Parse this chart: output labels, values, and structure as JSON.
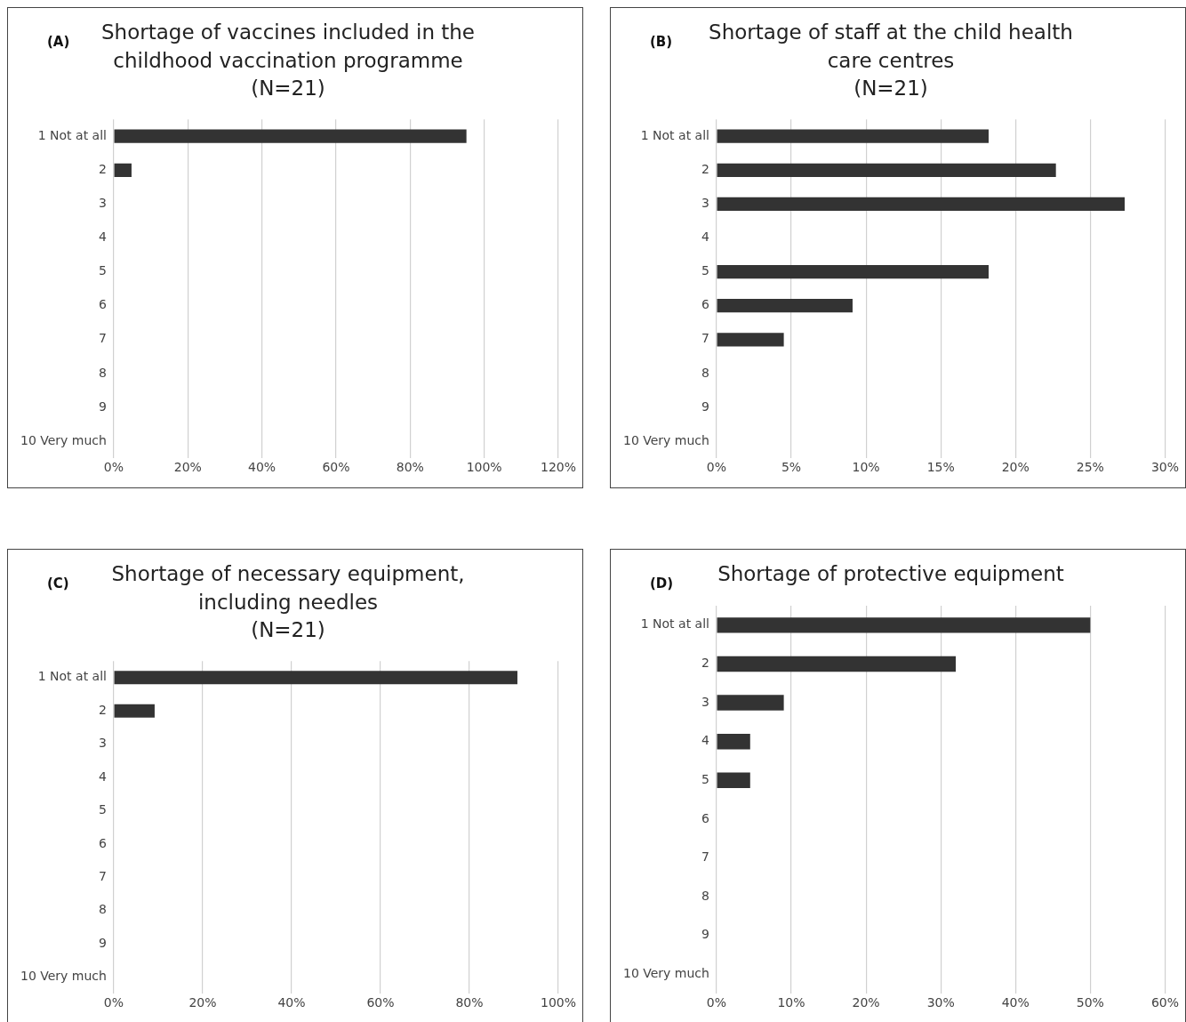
{
  "chart_data": [
    {
      "type": "bar",
      "orientation": "horizontal",
      "title": "Shortage of vaccines included in the\nchildhood vaccination programme\n(N=21)",
      "annotations": [
        "(A)"
      ],
      "categories": [
        "1 Not at all",
        "2",
        "3",
        "4",
        "5",
        "6",
        "7",
        "8",
        "9",
        "10 Very much"
      ],
      "values": [
        95.2,
        4.8,
        0,
        0,
        0,
        0,
        0,
        0,
        0,
        0
      ],
      "color": "#333333",
      "xlim": [
        0,
        120
      ],
      "xticks": [
        {
          "value": 0,
          "label": "0%"
        },
        {
          "value": 20,
          "label": "20%"
        },
        {
          "value": 40,
          "label": "40%"
        },
        {
          "value": 60,
          "label": "60%"
        },
        {
          "value": 80,
          "label": "80%"
        },
        {
          "value": 100,
          "label": "100%"
        },
        {
          "value": 120,
          "label": "120%"
        }
      ],
      "grid": "x",
      "legend": false
    },
    {
      "type": "bar",
      "orientation": "horizontal",
      "title": "Shortage of staff at the child health\ncare centres\n(N=21)",
      "annotations": [
        "(B)"
      ],
      "categories": [
        "1 Not at all",
        "2",
        "3",
        "4",
        "5",
        "6",
        "7",
        "8",
        "9",
        "10 Very much"
      ],
      "values": [
        18.2,
        22.7,
        27.3,
        0,
        18.2,
        9.1,
        4.5,
        0,
        0,
        0
      ],
      "color": "#333333",
      "xlim": [
        0,
        30
      ],
      "xticks": [
        {
          "value": 0,
          "label": "0%"
        },
        {
          "value": 5,
          "label": "5%"
        },
        {
          "value": 10,
          "label": "10%"
        },
        {
          "value": 15,
          "label": "15%"
        },
        {
          "value": 20,
          "label": "20%"
        },
        {
          "value": 25,
          "label": "25%"
        },
        {
          "value": 30,
          "label": "30%"
        }
      ],
      "grid": "x",
      "legend": false
    },
    {
      "type": "bar",
      "orientation": "horizontal",
      "title": "Shortage of necessary equipment,\nincluding needles\n(N=21)",
      "annotations": [
        "(C)"
      ],
      "categories": [
        "1 Not at all",
        "2",
        "3",
        "4",
        "5",
        "6",
        "7",
        "8",
        "9",
        "10 Very much"
      ],
      "values": [
        90.8,
        9.2,
        0,
        0,
        0,
        0,
        0,
        0,
        0,
        0
      ],
      "color": "#333333",
      "xlim": [
        0,
        100
      ],
      "xticks": [
        {
          "value": 0,
          "label": "0%"
        },
        {
          "value": 20,
          "label": "20%"
        },
        {
          "value": 40,
          "label": "40%"
        },
        {
          "value": 60,
          "label": "60%"
        },
        {
          "value": 80,
          "label": "80%"
        },
        {
          "value": 100,
          "label": "100%"
        }
      ],
      "grid": "x",
      "legend": false
    },
    {
      "type": "bar",
      "orientation": "horizontal",
      "title": "Shortage of protective equipment",
      "annotations": [
        "(D)"
      ],
      "categories": [
        "1 Not at all",
        "2",
        "3",
        "4",
        "5",
        "6",
        "7",
        "8",
        "9",
        "10 Very much"
      ],
      "values": [
        50,
        32,
        9,
        4.5,
        4.5,
        0,
        0,
        0,
        0,
        0
      ],
      "color": "#333333",
      "xlim": [
        0,
        60
      ],
      "xticks": [
        {
          "value": 0,
          "label": "0%"
        },
        {
          "value": 10,
          "label": "10%"
        },
        {
          "value": 20,
          "label": "20%"
        },
        {
          "value": 30,
          "label": "30%"
        },
        {
          "value": 40,
          "label": "40%"
        },
        {
          "value": 50,
          "label": "50%"
        },
        {
          "value": 60,
          "label": "60%"
        }
      ],
      "grid": "x",
      "legend": false
    }
  ]
}
